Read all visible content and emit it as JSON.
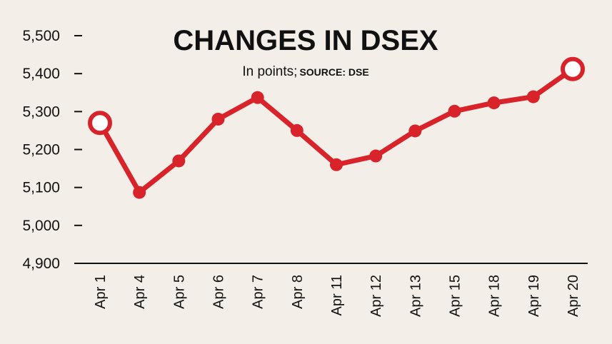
{
  "chart_data": {
    "type": "line",
    "title": "CHANGES IN DSEX",
    "subtitle": "In points;",
    "source": "SOURCE: DSE",
    "xlabel": "",
    "ylabel": "",
    "categories": [
      "Apr 1",
      "Apr 4",
      "Apr 5",
      "Apr 6",
      "Apr 7",
      "Apr 8",
      "Apr 11",
      "Apr 12",
      "Apr 13",
      "Apr 15",
      "Apr 18",
      "Apr 19",
      "Apr 20"
    ],
    "series": [
      {
        "values": [
          5270,
          5087,
          5170,
          5280,
          5337,
          5250,
          5160,
          5183,
          5249,
          5301,
          5323,
          5339,
          5412
        ]
      }
    ],
    "yticks": [
      "5,500",
      "5,400",
      "5,300",
      "5,200",
      "5,100",
      "5,000",
      "4,900"
    ],
    "ylim": [
      4900,
      5500
    ],
    "line_color": "#d8232a",
    "marker_fill": "#d8232a",
    "end_marker_fill": "#ffffff",
    "grid": false,
    "legend": "none"
  }
}
